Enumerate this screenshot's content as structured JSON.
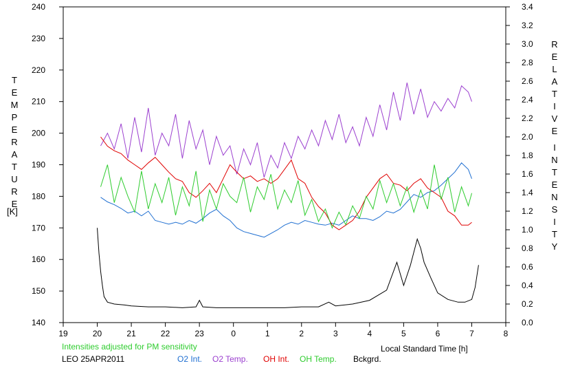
{
  "labels": {
    "left_axis_letters": [
      "T",
      "E",
      "M",
      "P",
      "E",
      "R",
      "A",
      "T",
      "U",
      "R",
      "E"
    ],
    "left_axis_unit": "[K]",
    "right_axis_letters_1": [
      "R",
      "E",
      "L",
      "A",
      "T",
      "I",
      "V",
      "E"
    ],
    "right_axis_letters_2": [
      "I",
      "N",
      "T",
      "E",
      "N",
      "S",
      "I",
      "T",
      "Y"
    ],
    "x_axis_label": "Local Standard Time [h]",
    "note": "Intensities adjusted for PM sensitivity",
    "site_date": "LEO 25APR2011",
    "legend": [
      "O2 Int.",
      "O2 Temp.",
      "OH Int.",
      "OH Temp.",
      "Bckgrd."
    ]
  },
  "colors": {
    "o2_int": "#1f6fd1",
    "o2_temp": "#9b3fcf",
    "oh_int": "#e00000",
    "oh_temp": "#2ecc2e",
    "background": "#000000",
    "note": "#2ecc2e"
  },
  "chart_data": {
    "type": "line",
    "x_ticks": [
      "19",
      "20",
      "21",
      "22",
      "23",
      "0",
      "1",
      "2",
      "3",
      "4",
      "5",
      "6",
      "7",
      "8"
    ],
    "y_left_ticks": [
      "140",
      "150",
      "160",
      "170",
      "180",
      "190",
      "200",
      "210",
      "220",
      "230",
      "240"
    ],
    "y_right_ticks": [
      "0.0",
      "0.2",
      "0.4",
      "0.6",
      "0.8",
      "1.0",
      "1.2",
      "1.4",
      "1.6",
      "1.8",
      "2.0",
      "2.2",
      "2.4",
      "2.6",
      "2.8",
      "3.0",
      "3.2",
      "3.4"
    ],
    "xlim": [
      19,
      32
    ],
    "ylim_left": [
      140,
      240
    ],
    "ylim_right": [
      0.0,
      3.4
    ],
    "grid": false,
    "series": [
      {
        "name": "O2 Temp.",
        "axis": "left",
        "color": "#9b3fcf",
        "x": [
          20.1,
          20.3,
          20.5,
          20.7,
          20.9,
          21.1,
          21.3,
          21.5,
          21.7,
          21.9,
          22.1,
          22.3,
          22.5,
          22.7,
          22.9,
          23.1,
          23.3,
          23.5,
          23.7,
          23.9,
          24.1,
          24.3,
          24.5,
          24.7,
          24.9,
          25.1,
          25.3,
          25.5,
          25.7,
          25.9,
          26.1,
          26.3,
          26.5,
          26.7,
          26.9,
          27.1,
          27.3,
          27.5,
          27.7,
          27.9,
          28.1,
          28.3,
          28.5,
          28.7,
          28.9,
          29.1,
          29.3,
          29.5,
          29.7,
          29.9,
          30.1,
          30.3,
          30.5,
          30.7,
          30.9,
          31.0
        ],
        "y": [
          196,
          200,
          195,
          203,
          192,
          205,
          194,
          208,
          193,
          200,
          196,
          206,
          192,
          204,
          195,
          201,
          190,
          199,
          193,
          196,
          187,
          195,
          190,
          197,
          186,
          193,
          189,
          197,
          192,
          199,
          195,
          201,
          196,
          204,
          198,
          206,
          197,
          202,
          196,
          205,
          199,
          209,
          201,
          213,
          204,
          216,
          206,
          214,
          205,
          210,
          207,
          211,
          208,
          215,
          213,
          210
        ]
      },
      {
        "name": "O2 Int.",
        "axis": "right",
        "color": "#1f6fd1",
        "x": [
          20.1,
          20.3,
          20.5,
          20.7,
          20.9,
          21.1,
          21.3,
          21.5,
          21.7,
          21.9,
          22.1,
          22.3,
          22.5,
          22.7,
          22.9,
          23.1,
          23.3,
          23.5,
          23.7,
          23.9,
          24.1,
          24.3,
          24.5,
          24.7,
          24.9,
          25.1,
          25.3,
          25.5,
          25.7,
          25.9,
          26.1,
          26.3,
          26.5,
          26.7,
          26.9,
          27.1,
          27.3,
          27.5,
          27.7,
          27.9,
          28.1,
          28.3,
          28.5,
          28.7,
          28.9,
          29.1,
          29.3,
          29.5,
          29.7,
          29.9,
          30.1,
          30.3,
          30.5,
          30.7,
          30.9,
          31.0
        ],
        "y": [
          1.35,
          1.3,
          1.27,
          1.23,
          1.18,
          1.2,
          1.15,
          1.2,
          1.1,
          1.08,
          1.06,
          1.08,
          1.06,
          1.1,
          1.07,
          1.12,
          1.18,
          1.22,
          1.15,
          1.1,
          1.02,
          0.98,
          0.96,
          0.94,
          0.92,
          0.96,
          1.0,
          1.05,
          1.08,
          1.06,
          1.1,
          1.08,
          1.06,
          1.05,
          1.07,
          1.05,
          1.1,
          1.15,
          1.12,
          1.12,
          1.1,
          1.14,
          1.2,
          1.18,
          1.22,
          1.3,
          1.38,
          1.35,
          1.4,
          1.42,
          1.48,
          1.55,
          1.62,
          1.72,
          1.65,
          1.55
        ]
      },
      {
        "name": "OH Int.",
        "axis": "right",
        "color": "#e00000",
        "x": [
          20.1,
          20.3,
          20.5,
          20.7,
          20.9,
          21.1,
          21.3,
          21.5,
          21.7,
          21.9,
          22.1,
          22.3,
          22.5,
          22.7,
          22.9,
          23.1,
          23.3,
          23.5,
          23.7,
          23.9,
          24.1,
          24.3,
          24.5,
          24.7,
          24.9,
          25.1,
          25.3,
          25.5,
          25.7,
          25.9,
          26.1,
          26.3,
          26.5,
          26.7,
          26.9,
          27.1,
          27.3,
          27.5,
          27.7,
          27.9,
          28.1,
          28.3,
          28.5,
          28.7,
          28.9,
          29.1,
          29.3,
          29.5,
          29.7,
          29.9,
          30.1,
          30.3,
          30.5,
          30.7,
          30.9,
          31.0
        ],
        "y": [
          2.0,
          1.9,
          1.85,
          1.82,
          1.75,
          1.7,
          1.65,
          1.72,
          1.78,
          1.7,
          1.62,
          1.55,
          1.52,
          1.4,
          1.35,
          1.42,
          1.5,
          1.4,
          1.55,
          1.7,
          1.62,
          1.55,
          1.58,
          1.52,
          1.55,
          1.5,
          1.55,
          1.65,
          1.75,
          1.55,
          1.5,
          1.35,
          1.25,
          1.18,
          1.05,
          1.0,
          1.05,
          1.1,
          1.2,
          1.35,
          1.45,
          1.55,
          1.6,
          1.5,
          1.48,
          1.42,
          1.5,
          1.55,
          1.45,
          1.4,
          1.35,
          1.2,
          1.15,
          1.05,
          1.05,
          1.08
        ]
      },
      {
        "name": "OH Temp.",
        "axis": "left",
        "color": "#2ecc2e",
        "x": [
          20.1,
          20.3,
          20.5,
          20.7,
          20.9,
          21.1,
          21.3,
          21.5,
          21.7,
          21.9,
          22.1,
          22.3,
          22.5,
          22.7,
          22.9,
          23.1,
          23.3,
          23.5,
          23.7,
          23.9,
          24.1,
          24.3,
          24.5,
          24.7,
          24.9,
          25.1,
          25.3,
          25.5,
          25.7,
          25.9,
          26.1,
          26.3,
          26.5,
          26.7,
          26.9,
          27.1,
          27.3,
          27.5,
          27.7,
          27.9,
          28.1,
          28.3,
          28.5,
          28.7,
          28.9,
          29.1,
          29.3,
          29.5,
          29.7,
          29.9,
          30.1,
          30.3,
          30.5,
          30.7,
          30.9,
          31.0
        ],
        "y": [
          183,
          190,
          178,
          186,
          180,
          175,
          188,
          176,
          184,
          178,
          186,
          174,
          183,
          177,
          188,
          172,
          182,
          176,
          184,
          180,
          178,
          186,
          175,
          183,
          179,
          187,
          176,
          182,
          178,
          185,
          174,
          179,
          172,
          176,
          170,
          175,
          171,
          177,
          173,
          180,
          176,
          185,
          178,
          184,
          177,
          183,
          175,
          182,
          176,
          190,
          179,
          186,
          175,
          183,
          177,
          181
        ]
      },
      {
        "name": "Bckgrd.",
        "axis": "right",
        "color": "#000000",
        "x": [
          20.0,
          20.05,
          20.1,
          20.15,
          20.2,
          20.3,
          20.5,
          20.8,
          21.0,
          21.5,
          22.0,
          22.5,
          22.9,
          23.0,
          23.1,
          23.5,
          24.0,
          24.5,
          25.0,
          25.5,
          26.0,
          26.5,
          26.8,
          27.0,
          27.5,
          28.0,
          28.5,
          28.8,
          29.0,
          29.2,
          29.4,
          29.5,
          29.6,
          29.8,
          30.0,
          30.3,
          30.6,
          30.8,
          31.0,
          31.1,
          31.2
        ],
        "y": [
          1.02,
          0.75,
          0.55,
          0.4,
          0.28,
          0.22,
          0.2,
          0.19,
          0.18,
          0.17,
          0.17,
          0.16,
          0.17,
          0.24,
          0.17,
          0.16,
          0.16,
          0.16,
          0.16,
          0.16,
          0.17,
          0.17,
          0.22,
          0.18,
          0.2,
          0.24,
          0.35,
          0.65,
          0.4,
          0.62,
          0.9,
          0.8,
          0.65,
          0.48,
          0.32,
          0.25,
          0.22,
          0.22,
          0.25,
          0.38,
          0.62
        ]
      }
    ]
  }
}
